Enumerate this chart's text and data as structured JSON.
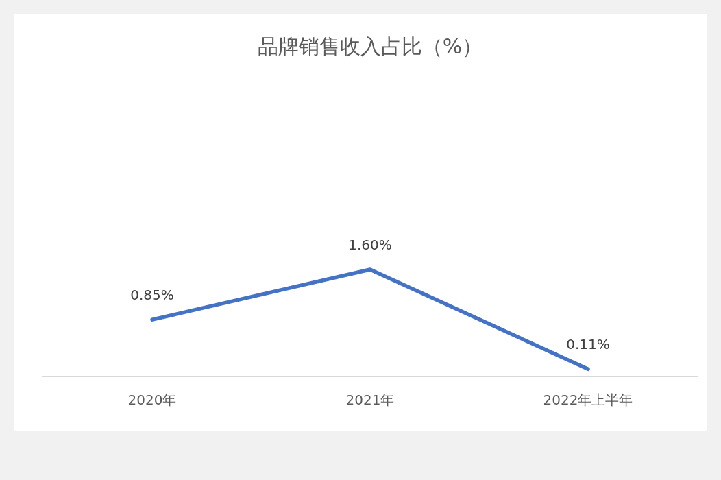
{
  "chart_data": {
    "type": "line",
    "title": "品牌销售收入占比（%）",
    "categories": [
      "2020年",
      "2021年",
      "2022年上半年"
    ],
    "series": [
      {
        "color": "#4472c4",
        "values": [
          0.85,
          1.6,
          0.11
        ],
        "value_labels": [
          "0.85%",
          "1.60%",
          "0.11%"
        ]
      }
    ],
    "tick_labels": "x",
    "grid": false,
    "legend": false,
    "marker": "none",
    "line_style": "solid"
  }
}
